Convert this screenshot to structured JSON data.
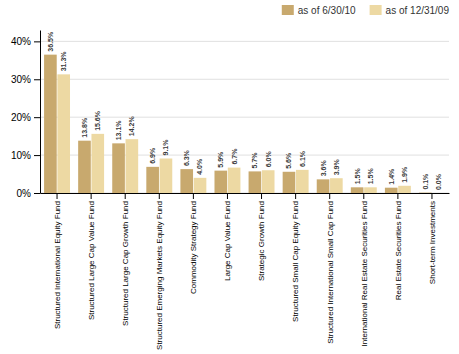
{
  "chart_data": {
    "type": "bar",
    "categories": [
      "Structured International Equity Fund",
      "Structured Large Cap Value Fund",
      "Structured Large Cap Growth Fund",
      "Structured Emerging Markets Equity Fund",
      "Commodity Strategy Fund",
      "Large Cap Value Fund",
      "Strategic Growth Fund",
      "Structured Small Cap Equity Fund",
      "Structured International Small Cap Fund",
      "International Real Estate Securities Fund",
      "Real Estate Securities Fund",
      "Short-term Investments"
    ],
    "series": [
      {
        "name": "as of 6/30/10",
        "color": "#C8A96E",
        "values": [
          36.5,
          13.8,
          13.1,
          6.9,
          6.3,
          5.9,
          5.7,
          5.6,
          3.6,
          1.5,
          1.4,
          0.1
        ],
        "value_labels": [
          "36.5%",
          "13.8%",
          "13.1%",
          "6.9%",
          "6.3%",
          "5.9%",
          "5.7%",
          "5.6%",
          "3.6%",
          "1.5%",
          "1.4%",
          "0.1%"
        ]
      },
      {
        "name": "as of 12/31/09",
        "color": "#EDD9A3",
        "values": [
          31.3,
          15.6,
          14.2,
          9.1,
          4.0,
          6.7,
          6.0,
          6.1,
          3.9,
          1.5,
          1.9,
          0.0
        ],
        "value_labels": [
          "31.3%",
          "15.6%",
          "14.2%",
          "9.1%",
          "4.0%",
          "6.7%",
          "6.0%",
          "6.1%",
          "3.9%",
          "1.5%",
          "1.9%",
          "0.0%"
        ]
      }
    ],
    "ylim": [
      0,
      43
    ],
    "yticks": [
      {
        "value": 0,
        "label": "0%"
      },
      {
        "value": 10,
        "label": "10%"
      },
      {
        "value": 20,
        "label": "20%"
      },
      {
        "value": 30,
        "label": "30%"
      },
      {
        "value": 40,
        "label": "40%"
      }
    ],
    "grid": true,
    "legend": "upper right",
    "data_labels": true
  }
}
